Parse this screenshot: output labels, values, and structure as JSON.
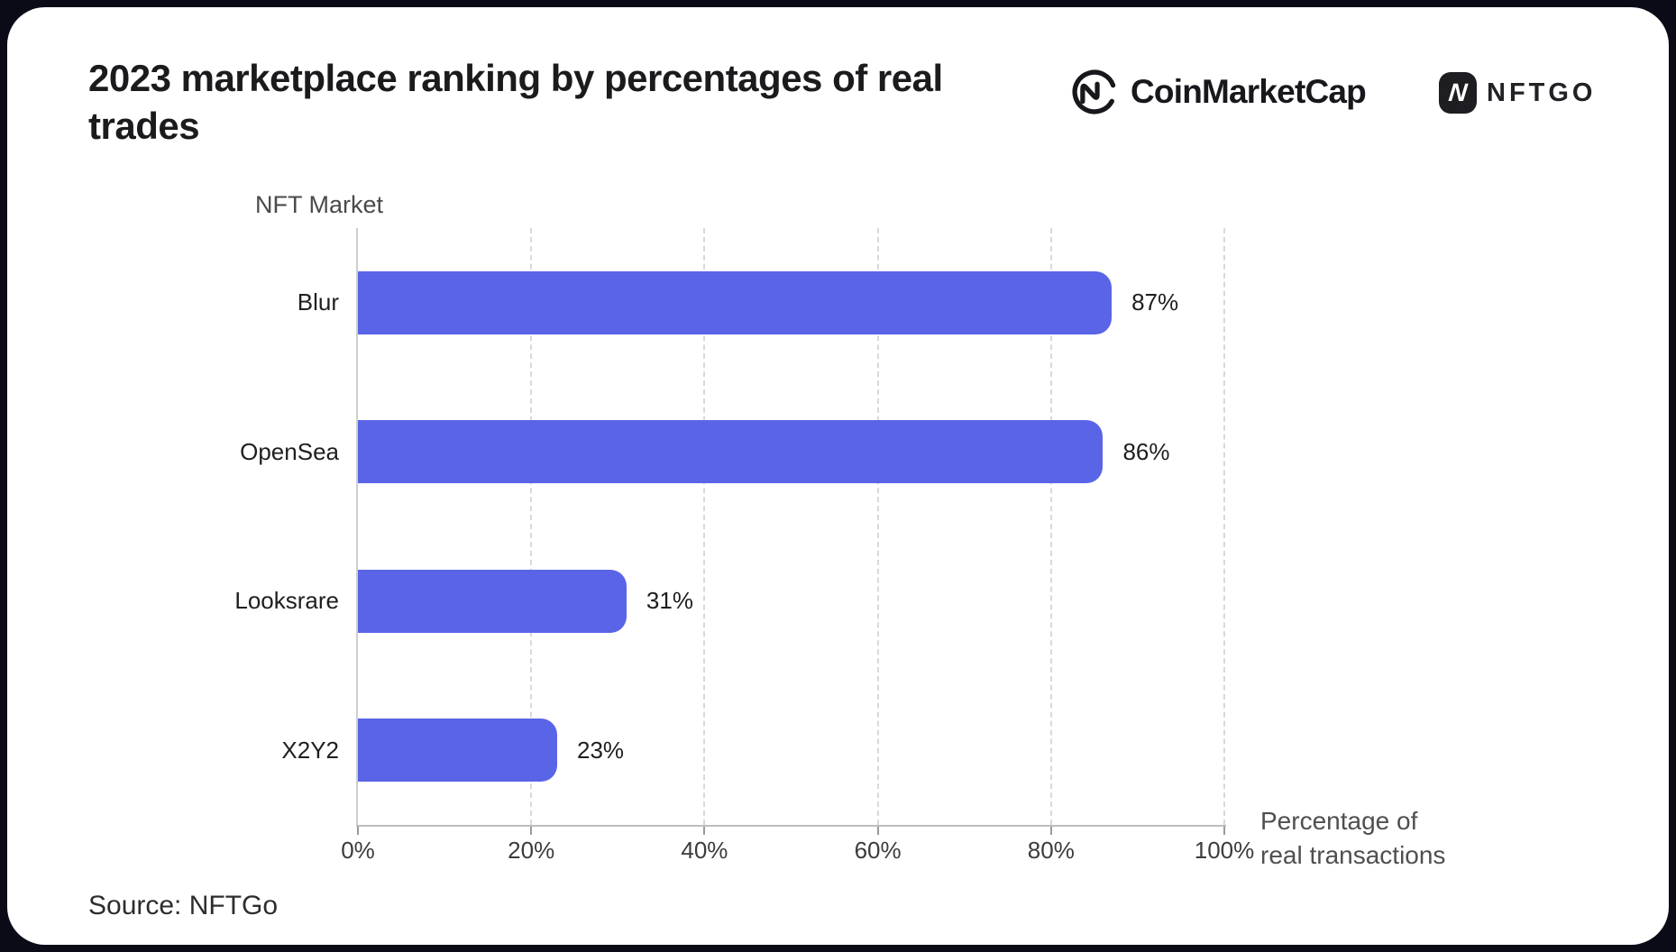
{
  "header": {
    "title": "2023 marketplace ranking by percentages of real trades",
    "logos": {
      "coinmarketcap": "CoinMarketCap",
      "nftgo": "NFTGO",
      "nftgo_badge_letter": "N"
    }
  },
  "chart_data": {
    "type": "bar",
    "orientation": "horizontal",
    "title": "2023 marketplace ranking by percentages of real trades",
    "ylabel": "NFT Market",
    "xlabel": "Percentage of real transactions",
    "xlabel_lines": [
      "Percentage of",
      "real transactions"
    ],
    "xlim": [
      0,
      100
    ],
    "grid": "dashed-vertical-at-ticks",
    "legend": "none",
    "bar_color": "#5A64E6",
    "x_ticks": [
      {
        "value": 0,
        "label": "0%"
      },
      {
        "value": 20,
        "label": "20%"
      },
      {
        "value": 40,
        "label": "40%"
      },
      {
        "value": 60,
        "label": "60%"
      },
      {
        "value": 80,
        "label": "80%"
      },
      {
        "value": 100,
        "label": "100%"
      }
    ],
    "rows": [
      {
        "label": "Blur",
        "value": 87,
        "display": "87%"
      },
      {
        "label": "OpenSea",
        "value": 86,
        "display": "86%"
      },
      {
        "label": "Looksrare",
        "value": 31,
        "display": "31%"
      },
      {
        "label": "X2Y2",
        "value": 23,
        "display": "23%"
      }
    ]
  },
  "footer": {
    "source": "Source: NFTGo"
  },
  "colors": {
    "bar": "#5A64E6",
    "frame_background": "#0b0b18",
    "card_background": "#ffffff",
    "logo_ink": "#17171c"
  }
}
